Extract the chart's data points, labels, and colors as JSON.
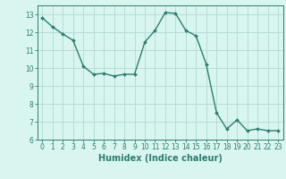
{
  "x": [
    0,
    1,
    2,
    3,
    4,
    5,
    6,
    7,
    8,
    9,
    10,
    11,
    12,
    13,
    14,
    15,
    16,
    17,
    18,
    19,
    20,
    21,
    22,
    23
  ],
  "y": [
    12.8,
    12.3,
    11.9,
    11.55,
    10.1,
    9.65,
    9.7,
    9.55,
    9.65,
    9.65,
    11.45,
    12.1,
    13.1,
    13.05,
    12.1,
    11.8,
    10.2,
    7.5,
    6.6,
    7.1,
    6.5,
    6.6,
    6.5,
    6.5
  ],
  "xlim": [
    -0.5,
    23.5
  ],
  "ylim": [
    6,
    13.5
  ],
  "yticks": [
    6,
    7,
    8,
    9,
    10,
    11,
    12,
    13
  ],
  "xticks": [
    0,
    1,
    2,
    3,
    4,
    5,
    6,
    7,
    8,
    9,
    10,
    11,
    12,
    13,
    14,
    15,
    16,
    17,
    18,
    19,
    20,
    21,
    22,
    23
  ],
  "xlabel": "Humidex (Indice chaleur)",
  "line_color": "#2e7d6e",
  "marker": "D",
  "marker_size": 2.0,
  "line_width": 1.0,
  "bg_color": "#d8f5f0",
  "grid_color": "#b8ddd8",
  "tick_label_fontsize": 5.5,
  "xlabel_fontsize": 7.0
}
